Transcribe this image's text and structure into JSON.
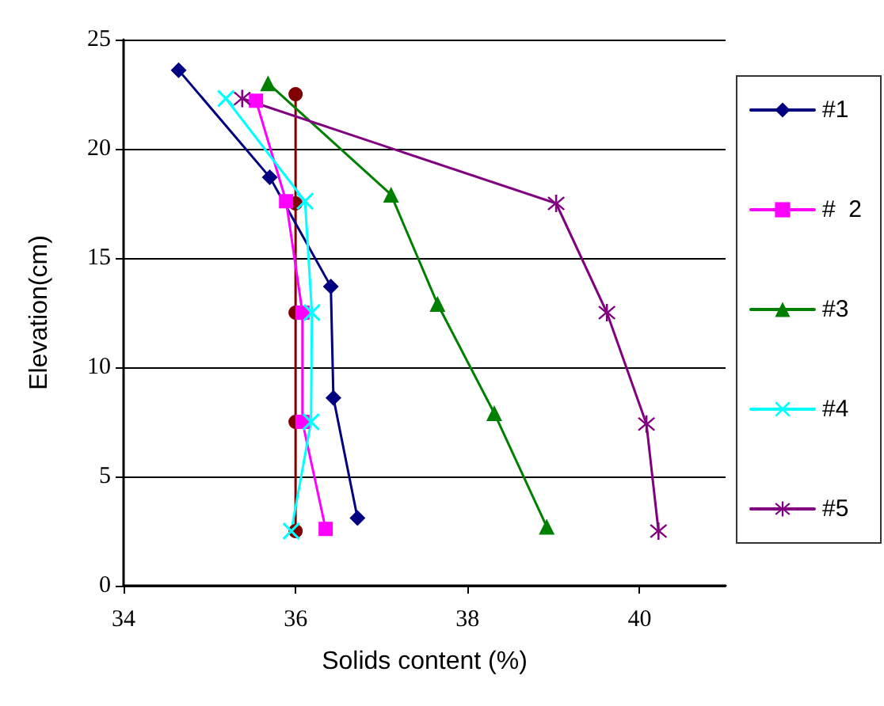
{
  "chart_data": {
    "type": "line",
    "xlabel": "Solids content (%)",
    "ylabel": "Elevation(cm)",
    "xlim": [
      34,
      41
    ],
    "xticks": [
      34,
      36,
      38,
      40
    ],
    "ylim": [
      0,
      25
    ],
    "yticks": [
      0,
      5,
      10,
      15,
      20,
      25
    ],
    "grid": "y",
    "legend": "right",
    "series": [
      {
        "color": "#800000",
        "marker": "circle",
        "x": [
          36.0,
          36.0,
          36.0,
          36.0,
          36.0
        ],
        "values": [
          22.5,
          17.5,
          12.5,
          7.5,
          2.5
        ]
      },
      {
        "name": "#1",
        "color": "#000080",
        "marker": "diamond",
        "x": [
          34.64,
          35.7,
          36.41,
          36.44,
          36.72
        ],
        "values": [
          23.6,
          18.7,
          13.7,
          8.6,
          3.1
        ]
      },
      {
        "name": "#  2",
        "color": "#ff00ff",
        "marker": "square",
        "x": [
          35.54,
          35.89,
          36.08,
          36.08,
          36.35
        ],
        "values": [
          22.2,
          17.6,
          12.5,
          7.5,
          2.6
        ]
      },
      {
        "name": "#3",
        "color": "#008000",
        "marker": "triangle",
        "x": [
          35.68,
          37.11,
          37.65,
          38.31,
          38.92
        ],
        "values": [
          23.0,
          17.9,
          12.9,
          7.9,
          2.7
        ]
      },
      {
        "name": "#4",
        "color": "#00ffff",
        "marker": "cross",
        "x": [
          35.19,
          36.11,
          36.19,
          36.18,
          35.95
        ],
        "values": [
          22.3,
          17.6,
          12.5,
          7.5,
          2.5
        ]
      },
      {
        "name": "#5",
        "color": "#800080",
        "marker": "star",
        "x": [
          35.38,
          39.03,
          39.62,
          40.08,
          40.22
        ],
        "values": [
          22.3,
          17.5,
          12.5,
          7.4,
          2.5
        ]
      }
    ]
  }
}
